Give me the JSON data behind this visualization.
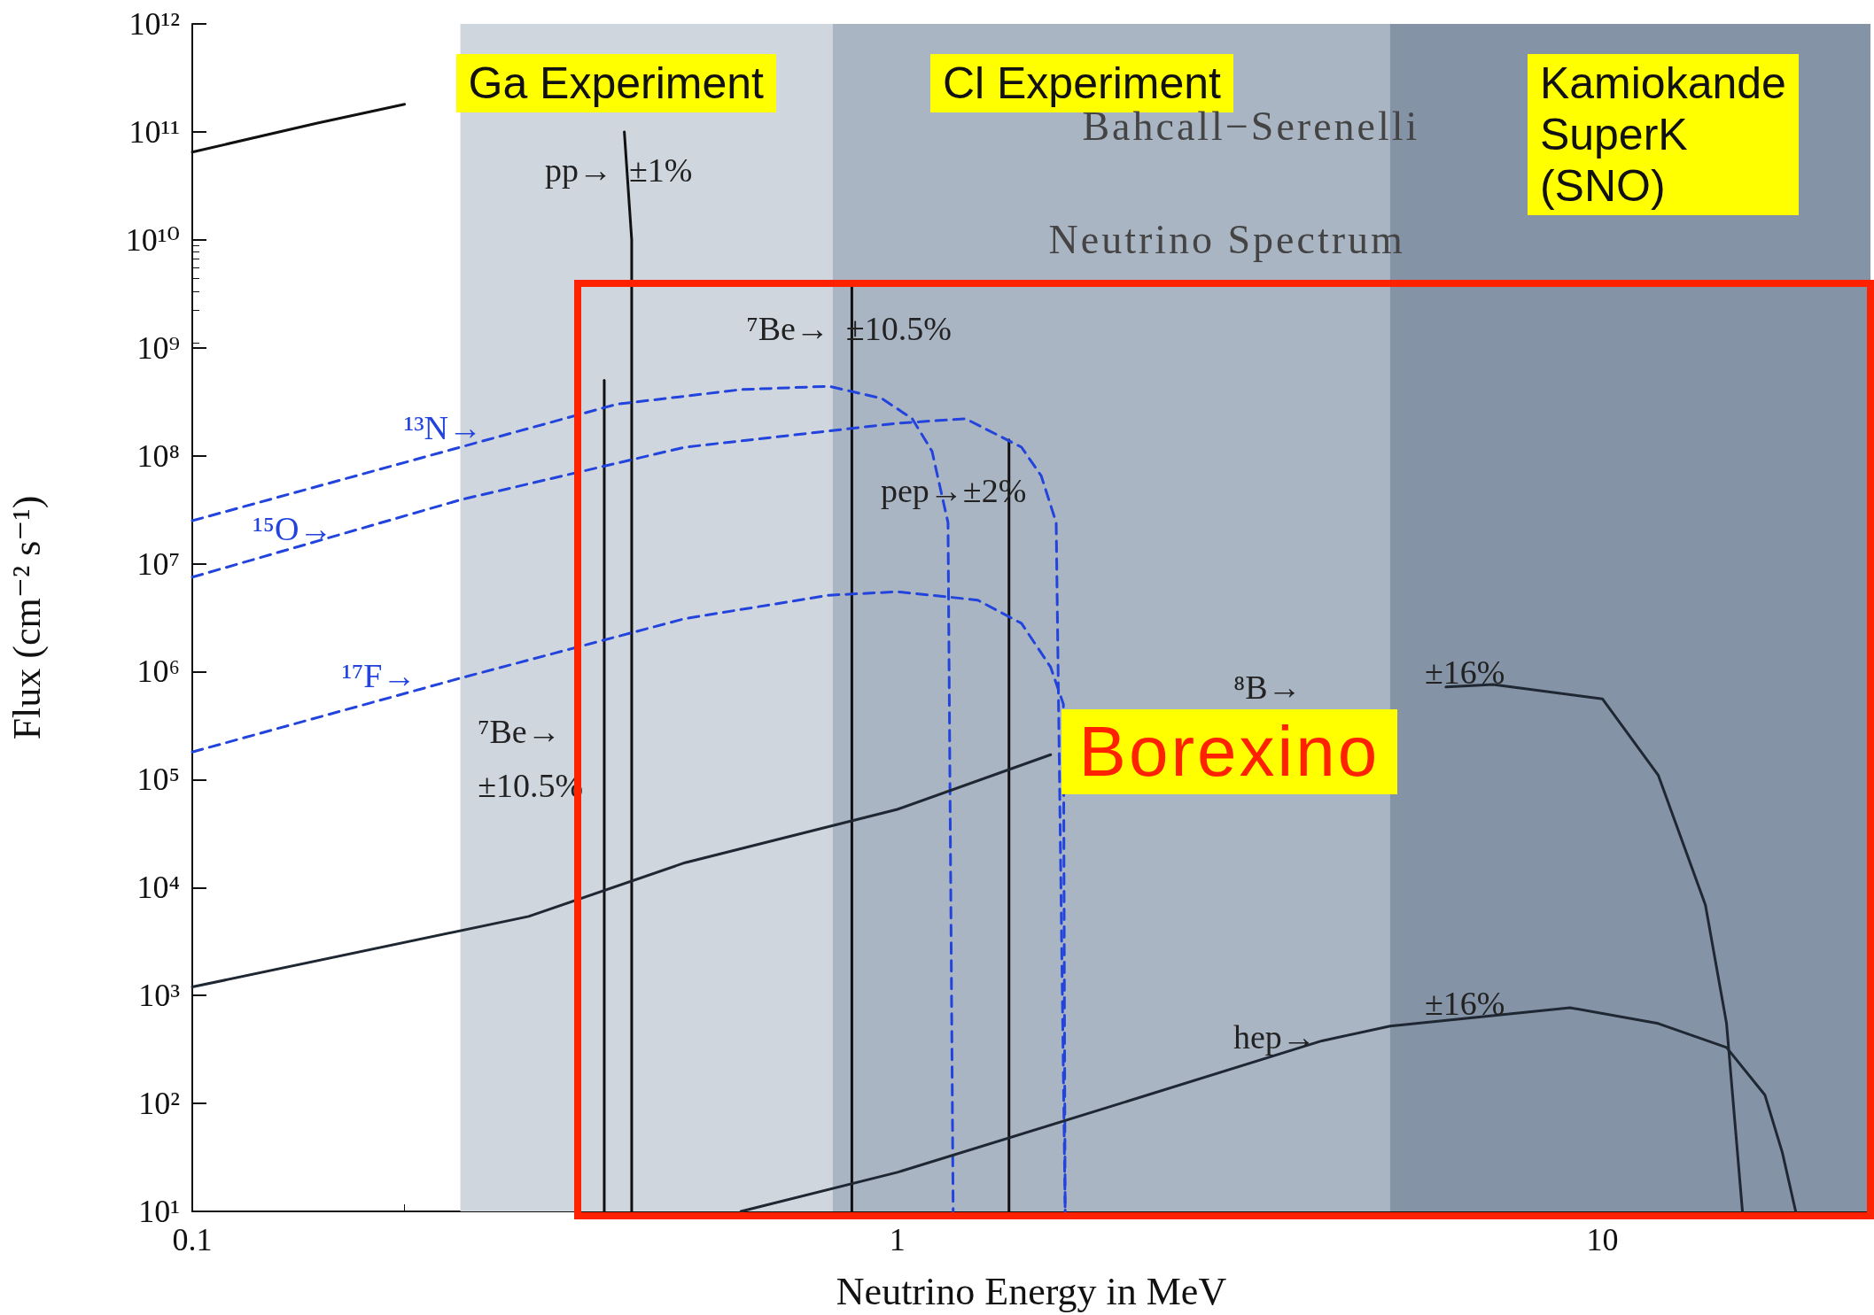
{
  "chart_data": {
    "type": "line",
    "xlabel": "Neutrino Energy in MeV",
    "ylabel": "Flux (cm⁻² s⁻¹)",
    "log": "xy",
    "grid": false,
    "marker": "none",
    "xlim": [
      0.1,
      24
    ],
    "xticks": [
      0.1,
      1,
      10
    ],
    "ylim": [
      10,
      1000000000000.0
    ],
    "yticks": [
      {
        "value": 10,
        "label": "10¹"
      },
      {
        "value": 100,
        "label": "10²"
      },
      {
        "value": 1000,
        "label": "10³"
      },
      {
        "value": 10000.0,
        "label": "10⁴"
      },
      {
        "value": 100000.0,
        "label": "10⁵"
      },
      {
        "value": 1000000.0,
        "label": "10⁶"
      },
      {
        "value": 10000000.0,
        "label": "10⁷"
      },
      {
        "value": 100000000.0,
        "label": "10⁸"
      },
      {
        "value": 1000000000.0,
        "label": "10⁹"
      },
      {
        "value": 10000000000.0,
        "label": "10¹⁰"
      },
      {
        "value": 100000000000.0,
        "label": "10¹¹"
      },
      {
        "value": 1000000000000.0,
        "label": "10¹²"
      }
    ],
    "bands": [
      {
        "axis": "x",
        "from": 0.24,
        "to": 24,
        "label": "Ga Experiment",
        "color": "#d0d6de"
      },
      {
        "axis": "x",
        "from": 0.81,
        "to": 24,
        "label": "Cl Experiment",
        "color": "#aab5c3"
      },
      {
        "axis": "x",
        "from": 5,
        "to": 24,
        "label": "Kamiokande\nSuperK\n(SNO)",
        "color": "#8593a6"
      }
    ],
    "series": [
      {
        "color": "#111111",
        "line_style": "solid",
        "x": [
          0.1,
          0.15,
          0.2,
          0.3,
          0.38,
          0.41,
          0.42,
          0.42
        ],
        "values": [
          65000000000.0,
          120000000000.0,
          180000000000.0,
          null,
          null,
          100000000000.0,
          10000000000.0,
          10
        ]
      },
      {
        "color": "#111111",
        "line_style": "solid",
        "x": [
          0.384,
          0.384
        ],
        "values": [
          10,
          500000000.0
        ]
      },
      {
        "color": "#111111",
        "line_style": "solid",
        "x": [
          0.862,
          0.862
        ],
        "values": [
          10,
          3800000000.0
        ]
      },
      {
        "color": "#111111",
        "line_style": "solid",
        "x": [
          1.44,
          1.44
        ],
        "values": [
          10,
          140000000.0
        ]
      },
      {
        "color": "#2244dd",
        "line_style": "dashed",
        "x": [
          0.1,
          0.24,
          0.4,
          0.6,
          0.8,
          0.95,
          1.05,
          1.12,
          1.18,
          1.2
        ],
        "values": [
          25000000.0,
          120000000.0,
          300000000.0,
          410000000.0,
          440000000.0,
          340000000.0,
          220000000.0,
          110000000.0,
          24000000.0,
          10
        ]
      },
      {
        "color": "#2244dd",
        "line_style": "dashed",
        "x": [
          0.1,
          0.24,
          0.5,
          1.0,
          1.25,
          1.5,
          1.6,
          1.68,
          1.73
        ],
        "values": [
          7500000.0,
          39000000.0,
          120000000.0,
          200000000.0,
          220000000.0,
          120000000.0,
          65000000.0,
          24000000.0,
          10
        ]
      },
      {
        "color": "#2244dd",
        "line_style": "dashed",
        "x": [
          0.1,
          0.24,
          0.5,
          0.8,
          1.0,
          1.3,
          1.5,
          1.65,
          1.72,
          1.73
        ],
        "values": [
          180000.0,
          870000.0,
          3100000.0,
          5100000.0,
          5500000.0,
          4600000.0,
          2800000.0,
          1100000.0,
          500000.0,
          10
        ]
      },
      {
        "color": "#1f2733",
        "line_style": "solid",
        "x": [
          0.1,
          0.3,
          0.5,
          1.0,
          1.65,
          3,
          6,
          7,
          10,
          12,
          14,
          15,
          15.8
        ],
        "values": [
          1200.0,
          5400.0,
          17000.0,
          53000.0,
          170000.0,
          null,
          720000.0,
          760000.0,
          560000.0,
          110000.0,
          6900.0,
          550.0,
          10
        ]
      },
      {
        "color": "#1f2733",
        "line_style": "solid",
        "x": [
          0.6,
          1.0,
          2,
          4,
          5,
          9,
          12,
          15,
          17,
          18,
          18.8
        ],
        "values": [
          10,
          23,
          93,
          380,
          520,
          770,
          550,
          330,
          120,
          35,
          10
        ]
      }
    ],
    "annotations": [
      "Bahcall−Serenelli",
      "Neutrino Spectrum",
      "Borexino",
      "pp→  ±1%",
      "⁷Be→  ±10.5%",
      "⁷Be→",
      "±10.5%",
      "pep→±2%",
      "¹³N→",
      "¹⁵O→",
      "¹⁷F→",
      "⁸B→",
      "±16%",
      "hep→",
      "±16%"
    ]
  }
}
